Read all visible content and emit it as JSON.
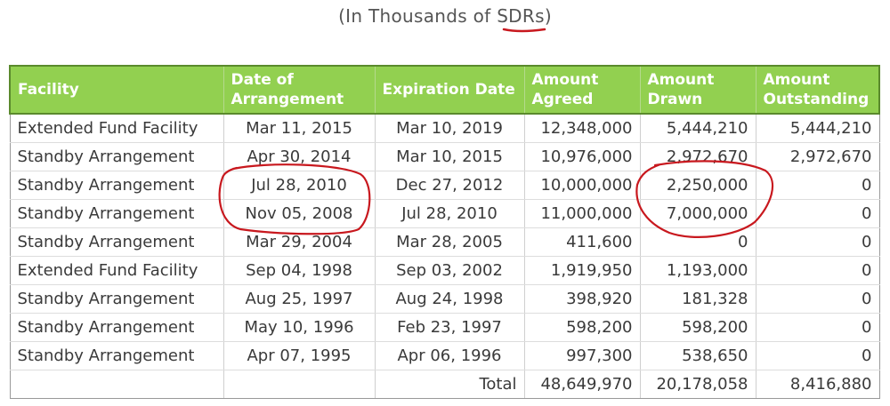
{
  "caption": {
    "prefix": "(In Thousands of ",
    "highlight": "SDRs",
    "suffix": ")"
  },
  "table": {
    "headers": {
      "facility": "Facility",
      "date_of_arrangement": "Date of Arrangement",
      "expiration_date": "Expiration Date",
      "amount_agreed": "Amount Agreed",
      "amount_drawn": "Amount Drawn",
      "amount_outstanding": "Amount Outstanding"
    },
    "rows": [
      {
        "facility": "Extended Fund Facility",
        "date": "Mar 11, 2015",
        "expiration": "Mar 10, 2019",
        "agreed": "12,348,000",
        "drawn": "5,444,210",
        "outstanding": "5,444,210"
      },
      {
        "facility": "Standby Arrangement",
        "date": "Apr 30, 2014",
        "expiration": "Mar 10, 2015",
        "agreed": "10,976,000",
        "drawn": "2,972,670",
        "outstanding": "2,972,670"
      },
      {
        "facility": "Standby Arrangement",
        "date": "Jul 28, 2010",
        "expiration": "Dec 27, 2012",
        "agreed": "10,000,000",
        "drawn": "2,250,000",
        "outstanding": "0"
      },
      {
        "facility": "Standby Arrangement",
        "date": "Nov 05, 2008",
        "expiration": "Jul 28, 2010",
        "agreed": "11,000,000",
        "drawn": "7,000,000",
        "outstanding": "0"
      },
      {
        "facility": "Standby Arrangement",
        "date": "Mar 29, 2004",
        "expiration": "Mar 28, 2005",
        "agreed": "411,600",
        "drawn": "0",
        "outstanding": "0"
      },
      {
        "facility": "Extended Fund Facility",
        "date": "Sep 04, 1998",
        "expiration": "Sep 03, 2002",
        "agreed": "1,919,950",
        "drawn": "1,193,000",
        "outstanding": "0"
      },
      {
        "facility": "Standby Arrangement",
        "date": "Aug 25, 1997",
        "expiration": "Aug 24, 1998",
        "agreed": "398,920",
        "drawn": "181,328",
        "outstanding": "0"
      },
      {
        "facility": "Standby Arrangement",
        "date": "May 10, 1996",
        "expiration": "Feb 23, 1997",
        "agreed": "598,200",
        "drawn": "598,200",
        "outstanding": "0"
      },
      {
        "facility": "Standby Arrangement",
        "date": "Apr 07, 1995",
        "expiration": "Apr 06, 1996",
        "agreed": "997,300",
        "drawn": "538,650",
        "outstanding": "0"
      }
    ],
    "total": {
      "label": "Total",
      "agreed": "48,649,970",
      "drawn": "20,178,058",
      "outstanding": "8,416,880"
    }
  },
  "colors": {
    "header_bg": "#92d050",
    "header_text": "#ffffff",
    "annotation_red": "#c8181e"
  }
}
